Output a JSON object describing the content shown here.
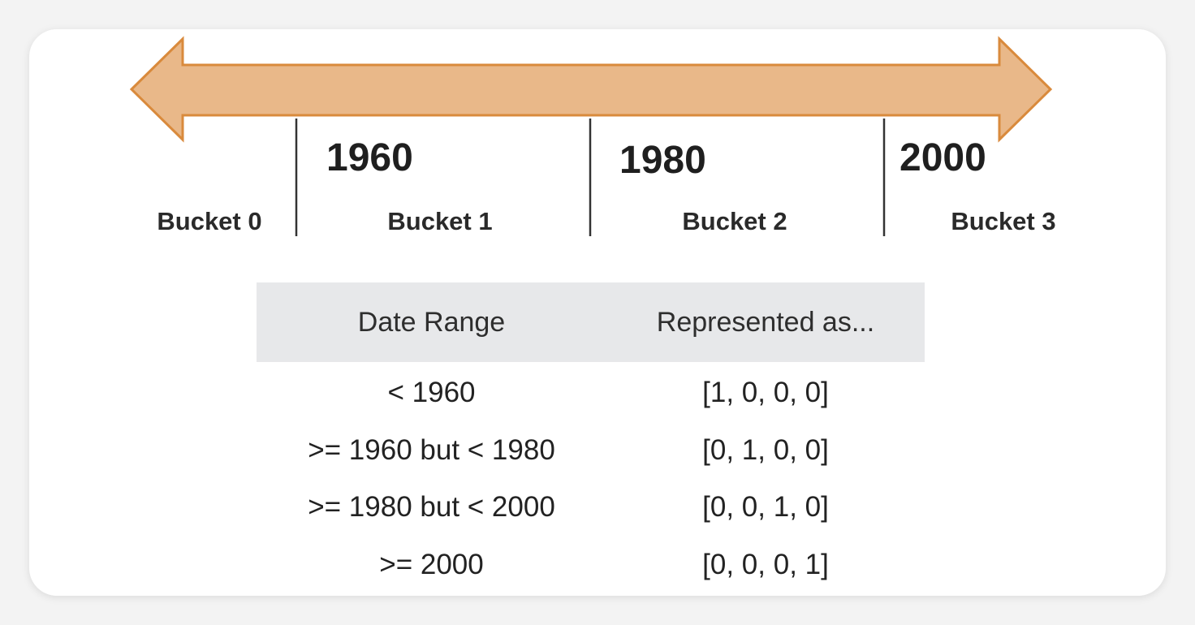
{
  "timeline": {
    "arrow_fill": "#e9b889",
    "arrow_stroke": "#d98a3c",
    "years": [
      "1960",
      "1980",
      "2000"
    ],
    "buckets": [
      "Bucket 0",
      "Bucket 1",
      "Bucket 2",
      "Bucket 3"
    ]
  },
  "table": {
    "headers": [
      "Date Range",
      "Represented as..."
    ],
    "rows": [
      {
        "range": "< 1960",
        "encoding": "[1, 0, 0, 0]"
      },
      {
        "range": ">= 1960 but < 1980",
        "encoding": "[0, 1, 0, 0]"
      },
      {
        "range": ">= 1980 but < 2000",
        "encoding": "[0, 0, 1, 0]"
      },
      {
        "range": ">= 2000",
        "encoding": "[0, 0, 0, 1]"
      }
    ]
  }
}
